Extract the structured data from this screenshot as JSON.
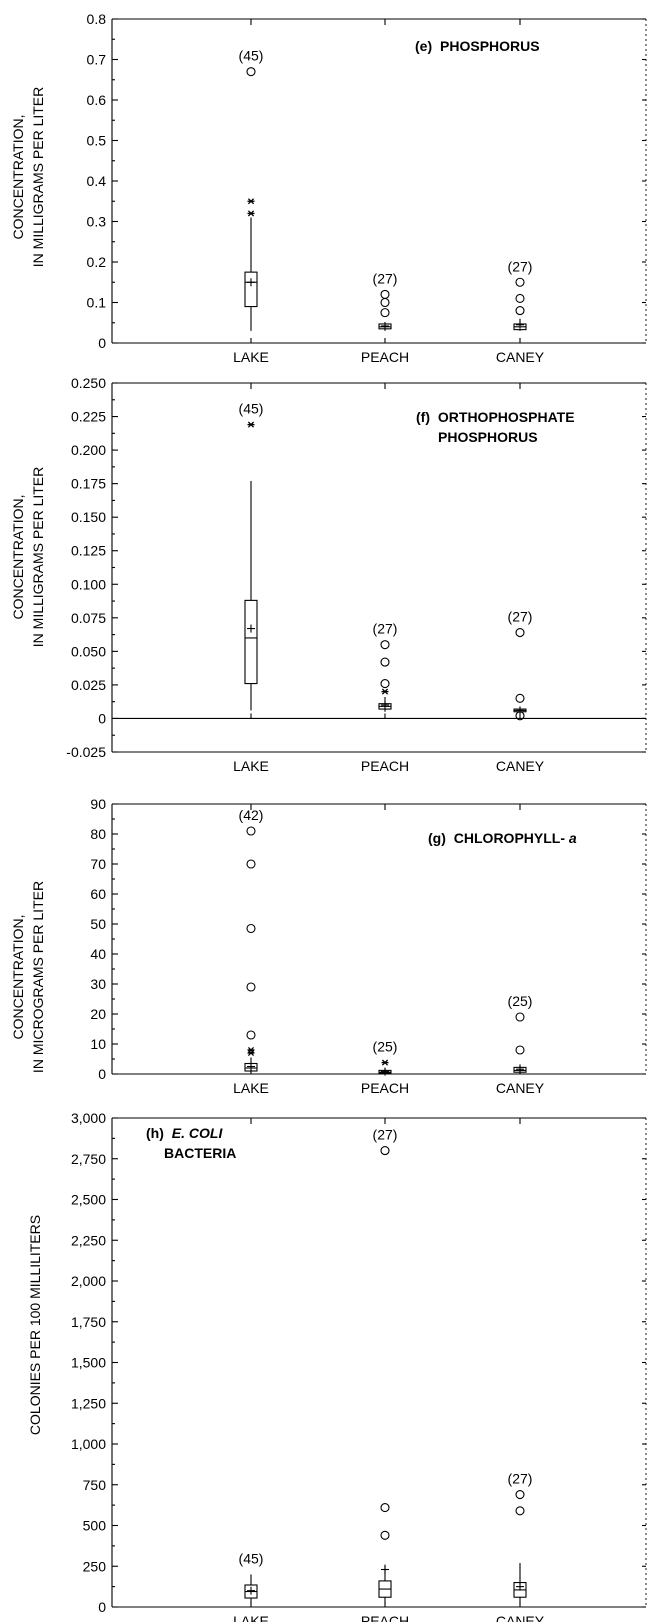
{
  "figure": {
    "categories": [
      "LAKE",
      "PEACH",
      "CANEY"
    ]
  },
  "chart_data": [
    {
      "type": "box",
      "panel_label": "(e)",
      "title_lines": [
        "PHOSPHORUS"
      ],
      "ylabel_lines": [
        "CONCENTRATION,",
        "IN MILLIGRAMS PER LITER"
      ],
      "ylim": [
        0,
        0.8
      ],
      "yticks": [
        0,
        0.1,
        0.2,
        0.3,
        0.4,
        0.5,
        0.6,
        0.7,
        0.8
      ],
      "ytick_labels": [
        "0",
        "0.1",
        "0.2",
        "0.3",
        "0.4",
        "0.5",
        "0.6",
        "0.7",
        "0.8"
      ],
      "categories": [
        "LAKE",
        "PEACH",
        "CANEY"
      ],
      "boxes": [
        {
          "category": "LAKE",
          "count_label": "(45)",
          "q1": 0.09,
          "median": 0.15,
          "q3": 0.175,
          "mean": 0.15,
          "whisker_low": 0.03,
          "whisker_high": 0.31,
          "outliers_far": [
            0.67
          ],
          "outliers_near": [
            0.32,
            0.35
          ]
        },
        {
          "category": "PEACH",
          "count_label": "(27)",
          "q1": 0.035,
          "median": 0.04,
          "q3": 0.047,
          "mean": 0.042,
          "whisker_low": 0.03,
          "whisker_high": 0.05,
          "outliers_far": [
            0.075,
            0.1,
            0.12
          ],
          "outliers_near": []
        },
        {
          "category": "CANEY",
          "count_label": "(27)",
          "q1": 0.033,
          "median": 0.04,
          "q3": 0.047,
          "mean": 0.045,
          "whisker_low": 0.03,
          "whisker_high": 0.06,
          "outliers_far": [
            0.08,
            0.11,
            0.15
          ],
          "outliers_near": []
        }
      ]
    },
    {
      "type": "box",
      "panel_label": "(f)",
      "title_lines": [
        "ORTHOPHOSPHATE",
        "PHOSPHORUS"
      ],
      "ylabel_lines": [
        "CONCENTRATION,",
        "IN MILLIGRAMS PER LITER"
      ],
      "ylim": [
        -0.025,
        0.25
      ],
      "yticks": [
        -0.025,
        0,
        0.025,
        0.05,
        0.075,
        0.1,
        0.125,
        0.15,
        0.175,
        0.2,
        0.225,
        0.25
      ],
      "ytick_labels": [
        "-0.025",
        "0",
        "0.025",
        "0.050",
        "0.075",
        "0.100",
        "0.125",
        "0.150",
        "0.175",
        "0.200",
        "0.225",
        "0.250"
      ],
      "categories": [
        "LAKE",
        "PEACH",
        "CANEY"
      ],
      "boxes": [
        {
          "category": "LAKE",
          "count_label": "(45)",
          "q1": 0.026,
          "median": 0.06,
          "q3": 0.088,
          "mean": 0.067,
          "whisker_low": 0.006,
          "whisker_high": 0.177,
          "outliers_far": [],
          "outliers_near": [
            0.219
          ]
        },
        {
          "category": "PEACH",
          "count_label": "(27)",
          "q1": 0.007,
          "median": 0.009,
          "q3": 0.011,
          "mean": 0.01,
          "whisker_low": 0.005,
          "whisker_high": 0.016,
          "outliers_far": [
            0.026,
            0.042,
            0.055
          ],
          "outliers_near": [
            0.02
          ]
        },
        {
          "category": "CANEY",
          "count_label": "(27)",
          "q1": 0.005,
          "median": 0.006,
          "q3": 0.007,
          "mean": 0.006,
          "whisker_low": 0.004,
          "whisker_high": 0.008,
          "outliers_far": [
            0.002,
            0.015,
            0.064
          ],
          "outliers_near": []
        }
      ]
    },
    {
      "type": "box",
      "panel_label": "(g)",
      "title_lines": [
        "CHLOROPHYLL-",
        "a"
      ],
      "ylabel_lines": [
        "CONCENTRATION,",
        "IN MICROGRAMS PER LITER"
      ],
      "ylim": [
        0,
        90
      ],
      "yticks": [
        0,
        10,
        20,
        30,
        40,
        50,
        60,
        70,
        80,
        90
      ],
      "ytick_labels": [
        "0",
        "10",
        "20",
        "30",
        "40",
        "50",
        "60",
        "70",
        "80",
        "90"
      ],
      "categories": [
        "LAKE",
        "PEACH",
        "CANEY"
      ],
      "boxes": [
        {
          "category": "LAKE",
          "count_label": "(42)",
          "q1": 1,
          "median": 2,
          "q3": 3.5,
          "mean": 2.5,
          "whisker_low": 0.5,
          "whisker_high": 5.5,
          "outliers_far": [
            13,
            29,
            48.5,
            70,
            81
          ],
          "outliers_near": [
            7,
            8
          ]
        },
        {
          "category": "PEACH",
          "count_label": "(25)",
          "q1": 0.3,
          "median": 0.6,
          "q3": 1.2,
          "mean": 0.8,
          "whisker_low": 0.1,
          "whisker_high": 2,
          "outliers_far": [],
          "outliers_near": [
            3.8
          ]
        },
        {
          "category": "CANEY",
          "count_label": "(25)",
          "q1": 0.6,
          "median": 1.2,
          "q3": 2.2,
          "mean": 1.6,
          "whisker_low": 0.2,
          "whisker_high": 3.2,
          "outliers_far": [
            8,
            19
          ],
          "outliers_near": []
        }
      ]
    },
    {
      "type": "box",
      "panel_label": "(h)",
      "title_lines": [
        "E. COLI",
        "BACTERIA"
      ],
      "ylabel_lines": [
        "COLONIES PER 100 MILLILITERS"
      ],
      "ylim": [
        0,
        3000
      ],
      "yticks": [
        0,
        250,
        500,
        750,
        1000,
        1250,
        1500,
        1750,
        2000,
        2250,
        2500,
        2750,
        3000
      ],
      "ytick_labels": [
        "0",
        "250",
        "500",
        "750",
        "1,000",
        "1,250",
        "1,500",
        "1,750",
        "2,000",
        "2,250",
        "2,500",
        "2,750",
        "3,000"
      ],
      "categories": [
        "LAKE",
        "PEACH",
        "CANEY"
      ],
      "boxes": [
        {
          "category": "LAKE",
          "count_label": "(45)",
          "q1": 55,
          "median": 95,
          "q3": 135,
          "mean": 100,
          "whisker_low": 20,
          "whisker_high": 200,
          "outliers_far": [],
          "outliers_near": []
        },
        {
          "category": "PEACH",
          "count_label": "(27)",
          "q1": 60,
          "median": 110,
          "q3": 160,
          "mean": 230,
          "whisker_low": 20,
          "whisker_high": 260,
          "outliers_far": [
            440,
            610,
            2800
          ],
          "outliers_near": []
        },
        {
          "category": "CANEY",
          "count_label": "(27)",
          "q1": 60,
          "median": 105,
          "q3": 150,
          "mean": 125,
          "whisker_low": 20,
          "whisker_high": 270,
          "outliers_far": [
            590,
            690
          ],
          "outliers_near": []
        }
      ]
    }
  ]
}
